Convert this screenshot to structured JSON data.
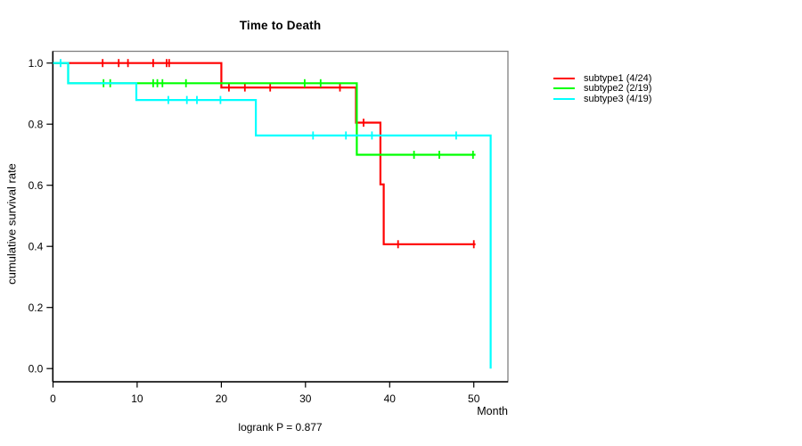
{
  "title": "Time to Death",
  "footer": {
    "logrank": "logrank P = 0.877"
  },
  "axes": {
    "x": {
      "label": "Month",
      "ticks": [
        "0",
        "10",
        "20",
        "30",
        "40",
        "50"
      ]
    },
    "y": {
      "label": "cumulative survival rate",
      "ticks": [
        "1.0",
        "0.8",
        "0.6",
        "0.4",
        "0.2",
        "0.0"
      ]
    }
  },
  "legend": [
    {
      "label": "subtype1 (4/24)",
      "color": "#ff0000"
    },
    {
      "label": "subtype2 (2/19)",
      "color": "#00ff00"
    },
    {
      "label": "subtype3 (4/19)",
      "color": "#00ffff"
    }
  ],
  "colors": {
    "plot_border": "#808080",
    "axis": "#000000",
    "text": "#000000",
    "background": "#ffffff"
  },
  "chart_data": {
    "type": "line",
    "subtype": "kaplan-meier-step",
    "title": "Time to Death",
    "xlabel": "Month",
    "ylabel": "cumulative survival rate",
    "xlim": [
      0,
      54.1
    ],
    "ylim": [
      0,
      1.04
    ],
    "grid": false,
    "legend_position": "right-outside",
    "annotation": "logrank P = 0.877",
    "series": [
      {
        "name": "subtype1 (4/24)",
        "color": "#ff0000",
        "end_month": 50.2,
        "steps": [
          [
            0,
            1.0
          ],
          [
            20.0,
            0.92
          ],
          [
            36.0,
            0.805
          ],
          [
            38.9,
            0.603
          ],
          [
            39.3,
            0.407
          ]
        ],
        "censors": [
          [
            5.9,
            1.0
          ],
          [
            7.8,
            1.0
          ],
          [
            8.9,
            1.0
          ],
          [
            11.9,
            1.0
          ],
          [
            13.5,
            1.0
          ],
          [
            13.8,
            1.0
          ],
          [
            20.9,
            0.92
          ],
          [
            22.8,
            0.92
          ],
          [
            25.8,
            0.92
          ],
          [
            34.1,
            0.92
          ],
          [
            36.9,
            0.805
          ],
          [
            41.0,
            0.407
          ],
          [
            50.0,
            0.407
          ]
        ]
      },
      {
        "name": "subtype2 (2/19)",
        "color": "#00ff00",
        "end_month": 50.2,
        "steps": [
          [
            0,
            1.0
          ],
          [
            1.8,
            0.934
          ],
          [
            36.1,
            0.7
          ]
        ],
        "censors": [
          [
            6.0,
            0.934
          ],
          [
            6.8,
            0.934
          ],
          [
            11.9,
            0.934
          ],
          [
            12.4,
            0.934
          ],
          [
            13.0,
            0.934
          ],
          [
            15.8,
            0.934
          ],
          [
            29.9,
            0.934
          ],
          [
            31.8,
            0.934
          ],
          [
            42.9,
            0.7
          ],
          [
            45.9,
            0.7
          ],
          [
            49.9,
            0.7
          ]
        ]
      },
      {
        "name": "subtype3 (4/19)",
        "color": "#00ffff",
        "end_month": 52.0,
        "steps": [
          [
            0,
            1.0
          ],
          [
            1.8,
            0.934
          ],
          [
            9.9,
            0.879
          ],
          [
            24.1,
            0.763
          ],
          [
            52.0,
            0.0
          ]
        ],
        "censors": [
          [
            0.9,
            1.0
          ],
          [
            13.7,
            0.879
          ],
          [
            15.9,
            0.879
          ],
          [
            17.1,
            0.879
          ],
          [
            19.9,
            0.879
          ],
          [
            30.9,
            0.763
          ],
          [
            34.8,
            0.763
          ],
          [
            37.9,
            0.763
          ],
          [
            47.9,
            0.763
          ]
        ]
      }
    ]
  }
}
